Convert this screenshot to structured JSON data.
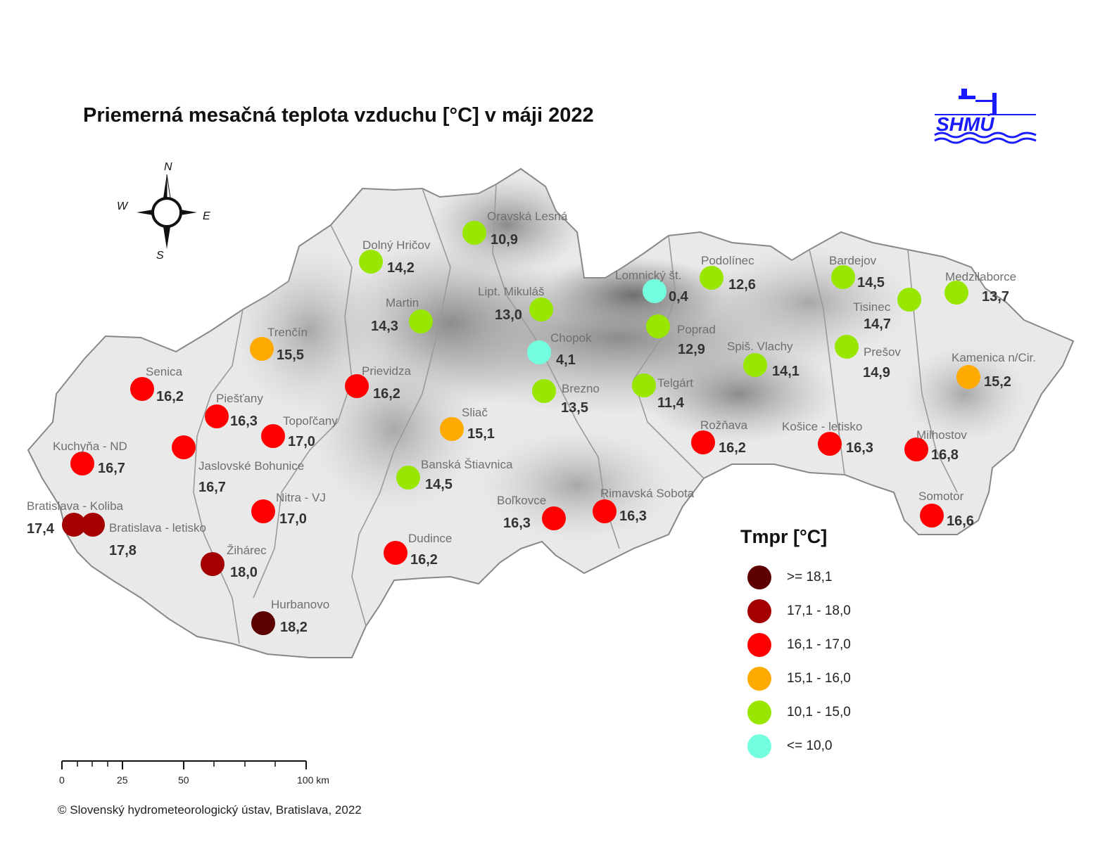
{
  "title": "Priemerná mesačná teplota vzduchu [°C] v máji 2022",
  "copyright": "© Slovenský hydrometeorologický ústav, Bratislava, 2022",
  "logo_text": "SHMÚ",
  "compass": {
    "n": "N",
    "s": "S",
    "e": "E",
    "w": "W"
  },
  "scale": {
    "labels": [
      "0",
      "25",
      "50",
      "100 km"
    ]
  },
  "legend": {
    "title": "Tmpr [°C]",
    "classes": [
      {
        "label": ">= 18,1",
        "color": "#5c0000"
      },
      {
        "label": "17,1 - 18,0",
        "color": "#a50000"
      },
      {
        "label": "16,1 - 17,0",
        "color": "#ff0000"
      },
      {
        "label": "15,1 - 16,0",
        "color": "#ffaa00"
      },
      {
        "label": "10,1 - 15,0",
        "color": "#99e600"
      },
      {
        "label": "<= 10,0",
        "color": "#73ffdf"
      }
    ]
  },
  "stations": [
    {
      "name": "Oravská Lesná",
      "value": "10,9",
      "cls": 4
    },
    {
      "name": "Dolný Hričov",
      "value": "14,2",
      "cls": 4
    },
    {
      "name": "Martin",
      "value": "14,3",
      "cls": 4
    },
    {
      "name": "Lipt. Mikuláš",
      "value": "13,0",
      "cls": 4
    },
    {
      "name": "Lomnický št.",
      "value": "0,4",
      "cls": 5
    },
    {
      "name": "Podolínec",
      "value": "12,6",
      "cls": 4
    },
    {
      "name": "Bardejov",
      "value": "14,5",
      "cls": 4
    },
    {
      "name": "Medzilaborce",
      "value": "13,7",
      "cls": 4
    },
    {
      "name": "Tisinec",
      "value": "14,7",
      "cls": 4
    },
    {
      "name": "Chopok",
      "value": "4,1",
      "cls": 5
    },
    {
      "name": "Poprad",
      "value": "12,9",
      "cls": 4
    },
    {
      "name": "Spiš. Vlachy",
      "value": "14,1",
      "cls": 4
    },
    {
      "name": "Prešov",
      "value": "14,9",
      "cls": 4
    },
    {
      "name": "Kamenica n/Cir.",
      "value": "15,2",
      "cls": 3
    },
    {
      "name": "Trenčín",
      "value": "15,5",
      "cls": 3
    },
    {
      "name": "Senica",
      "value": "16,2",
      "cls": 2
    },
    {
      "name": "Prievidza",
      "value": "16,2",
      "cls": 2
    },
    {
      "name": "Brezno",
      "value": "13,5",
      "cls": 4
    },
    {
      "name": "Telgárt",
      "value": "11,4",
      "cls": 4
    },
    {
      "name": "Piešťany",
      "value": "16,3",
      "cls": 2
    },
    {
      "name": "Topoľčany",
      "value": "17,0",
      "cls": 2
    },
    {
      "name": "Sliač",
      "value": "15,1",
      "cls": 3
    },
    {
      "name": "Rožňava",
      "value": "16,2",
      "cls": 2
    },
    {
      "name": "Košice - letisko",
      "value": "16,3",
      "cls": 2
    },
    {
      "name": "Milhostov",
      "value": "16,8",
      "cls": 2
    },
    {
      "name": "Kuchyňa - ND",
      "value": "16,7",
      "cls": 2
    },
    {
      "name": "Jaslovské Bohunice",
      "value": "16,7",
      "cls": 2
    },
    {
      "name": "Banská Štiavnica",
      "value": "14,5",
      "cls": 4
    },
    {
      "name": "Bratislava - Koliba",
      "value": "17,4",
      "cls": 1
    },
    {
      "name": "Bratislava - letisko",
      "value": "17,8",
      "cls": 1
    },
    {
      "name": "Nitra - VJ",
      "value": "17,0",
      "cls": 2
    },
    {
      "name": "Boľkovce",
      "value": "16,3",
      "cls": 2
    },
    {
      "name": "Rimavská Sobota",
      "value": "16,3",
      "cls": 2
    },
    {
      "name": "Somotor",
      "value": "16,6",
      "cls": 2
    },
    {
      "name": "Žihárec",
      "value": "18,0",
      "cls": 1
    },
    {
      "name": "Dudince",
      "value": "16,2",
      "cls": 2
    },
    {
      "name": "Hurbanovo",
      "value": "18,2",
      "cls": 0
    }
  ]
}
